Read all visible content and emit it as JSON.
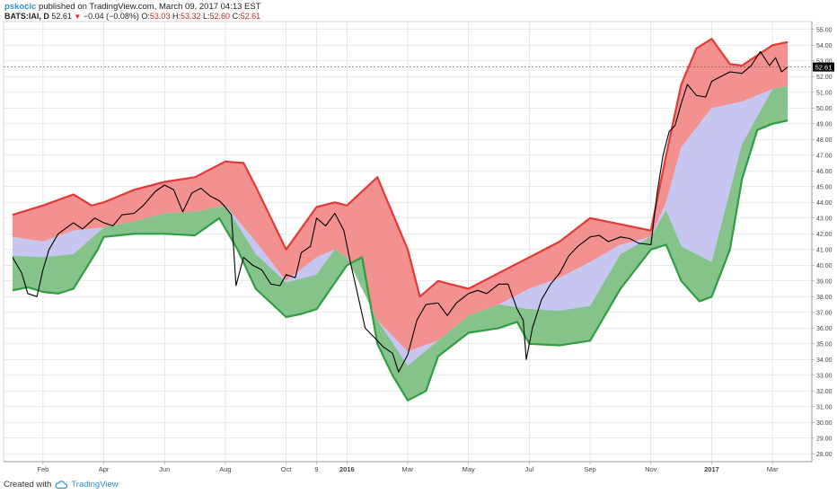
{
  "header": {
    "author": "pskocic",
    "published_text": "published on TradingView.com, March 09, 2017 04:13 EST",
    "symbol": "BATS:IAI, D",
    "last": "52.61",
    "change": "−0.04 (−0.08%)",
    "open_label": "O:",
    "open": "53.03",
    "high_label": "H:",
    "high": "53.32",
    "low_label": "L:",
    "low": "52.60",
    "close_label": "C:",
    "close": "52.61"
  },
  "footer": {
    "created_with": "Created with",
    "brand": "TradingView"
  },
  "colors": {
    "upper_band": "#e53935",
    "upper_fill": "#f28b8b",
    "middle_fill": "#c3c3f0",
    "lower_band": "#2e9e40",
    "lower_fill": "#7ec27e",
    "price_line": "#000000",
    "last_price_label_bg": "#000000"
  },
  "chart_data": {
    "type": "line",
    "title": "",
    "xlabel": "",
    "ylabel": "",
    "ylim": [
      27.5,
      55.5
    ],
    "grid": true,
    "y_ticks": [
      "28.00",
      "29.00",
      "30.00",
      "31.00",
      "32.00",
      "33.00",
      "34.00",
      "35.00",
      "36.00",
      "37.00",
      "38.00",
      "39.00",
      "40.00",
      "41.00",
      "42.00",
      "43.00",
      "44.00",
      "45.00",
      "46.00",
      "47.00",
      "48.00",
      "49.00",
      "50.00",
      "51.00",
      "52.00",
      "53.00",
      "54.00",
      "55.00"
    ],
    "x_ticks": [
      {
        "label": "Feb",
        "x": 1,
        "bold": false
      },
      {
        "label": "Apr",
        "x": 3,
        "bold": false
      },
      {
        "label": "Jun",
        "x": 5,
        "bold": false
      },
      {
        "label": "Aug",
        "x": 7,
        "bold": false
      },
      {
        "label": "Oct",
        "x": 9,
        "bold": false
      },
      {
        "label": "9",
        "x": 10,
        "bold": false
      },
      {
        "label": "2016",
        "x": 11,
        "bold": true
      },
      {
        "label": "Mar",
        "x": 13,
        "bold": false
      },
      {
        "label": "May",
        "x": 15,
        "bold": false
      },
      {
        "label": "Jul",
        "x": 17,
        "bold": false
      },
      {
        "label": "Sep",
        "x": 19,
        "bold": false
      },
      {
        "label": "Nov",
        "x": 21,
        "bold": false
      },
      {
        "label": "2017",
        "x": 23,
        "bold": true
      },
      {
        "label": "Mar",
        "x": 25,
        "bold": false
      }
    ],
    "xlim": [
      0,
      26
    ],
    "last_price_label": "52.61",
    "last_price_value": 52.61,
    "series": [
      {
        "role": "upper-band",
        "points": [
          [
            0,
            43.2
          ],
          [
            1,
            43.8
          ],
          [
            2,
            44.5
          ],
          [
            2.6,
            43.8
          ],
          [
            3,
            44.0
          ],
          [
            4,
            44.8
          ],
          [
            5,
            45.3
          ],
          [
            6,
            45.6
          ],
          [
            7,
            46.6
          ],
          [
            7.6,
            46.5
          ],
          [
            8,
            45.0
          ],
          [
            9,
            41.0
          ],
          [
            10,
            43.7
          ],
          [
            10.6,
            44.0
          ],
          [
            11,
            43.8
          ],
          [
            12,
            45.6
          ],
          [
            13,
            41.0
          ],
          [
            13.4,
            38.0
          ],
          [
            14,
            39.0
          ],
          [
            15,
            38.5
          ],
          [
            16,
            39.5
          ],
          [
            17,
            40.5
          ],
          [
            18,
            41.5
          ],
          [
            19,
            43.0
          ],
          [
            20,
            42.6
          ],
          [
            21,
            42.2
          ],
          [
            21.5,
            47.0
          ],
          [
            22,
            51.5
          ],
          [
            22.5,
            53.8
          ],
          [
            23,
            54.4
          ],
          [
            23.6,
            52.8
          ],
          [
            24,
            52.7
          ],
          [
            25,
            54.0
          ],
          [
            25.5,
            54.2
          ]
        ]
      },
      {
        "role": "middle-band",
        "points": [
          [
            0,
            41.8
          ],
          [
            1,
            41.5
          ],
          [
            2,
            42.2
          ],
          [
            3,
            42.4
          ],
          [
            4,
            42.8
          ],
          [
            5,
            43.3
          ],
          [
            6,
            43.4
          ],
          [
            7,
            43.8
          ],
          [
            8,
            41.5
          ],
          [
            9,
            39.0
          ],
          [
            10,
            40.5
          ],
          [
            10.6,
            41.0
          ],
          [
            11,
            40.5
          ],
          [
            12,
            36.5
          ],
          [
            13,
            34.5
          ],
          [
            14,
            35.2
          ],
          [
            15,
            36.8
          ],
          [
            16,
            37.5
          ],
          [
            17,
            38.5
          ],
          [
            18,
            39.2
          ],
          [
            19,
            40.2
          ],
          [
            20,
            41.3
          ],
          [
            21,
            41.8
          ],
          [
            21.5,
            44.0
          ],
          [
            22,
            47.5
          ],
          [
            23,
            50.0
          ],
          [
            24,
            50.4
          ],
          [
            25,
            51.2
          ],
          [
            25.5,
            51.4
          ]
        ]
      },
      {
        "role": "lower-band",
        "points": [
          [
            0,
            38.4
          ],
          [
            0.5,
            38.6
          ],
          [
            1,
            38.3
          ],
          [
            1.5,
            38.2
          ],
          [
            2,
            38.5
          ],
          [
            2.8,
            41.0
          ],
          [
            3,
            41.8
          ],
          [
            4,
            42.0
          ],
          [
            5,
            42.0
          ],
          [
            6,
            41.9
          ],
          [
            6.8,
            43.0
          ],
          [
            7.4,
            41.0
          ],
          [
            8,
            38.5
          ],
          [
            9,
            36.7
          ],
          [
            9.5,
            36.9
          ],
          [
            10,
            37.2
          ],
          [
            11,
            40.0
          ],
          [
            11.5,
            40.5
          ],
          [
            12,
            35.0
          ],
          [
            12.5,
            33.0
          ],
          [
            13,
            31.4
          ],
          [
            13.6,
            32.0
          ],
          [
            14,
            34.2
          ],
          [
            15,
            35.7
          ],
          [
            16,
            36.0
          ],
          [
            16.6,
            36.4
          ],
          [
            17,
            35.0
          ],
          [
            18,
            34.9
          ],
          [
            19,
            35.2
          ],
          [
            20,
            38.5
          ],
          [
            21,
            41.0
          ],
          [
            21.5,
            41.3
          ],
          [
            22,
            39.0
          ],
          [
            22.6,
            37.7
          ],
          [
            23,
            38.0
          ],
          [
            23.6,
            41.0
          ],
          [
            24,
            45.5
          ],
          [
            24.5,
            48.6
          ],
          [
            25,
            49.0
          ],
          [
            25.5,
            49.2
          ]
        ]
      },
      {
        "role": "price",
        "points": [
          [
            0,
            40.5
          ],
          [
            0.3,
            39.5
          ],
          [
            0.5,
            38.2
          ],
          [
            0.8,
            38.0
          ],
          [
            1,
            39.7
          ],
          [
            1.2,
            41.0
          ],
          [
            1.5,
            42.0
          ],
          [
            2,
            42.7
          ],
          [
            2.3,
            42.3
          ],
          [
            2.7,
            43.0
          ],
          [
            3,
            42.7
          ],
          [
            3.3,
            42.5
          ],
          [
            3.6,
            43.2
          ],
          [
            4,
            43.3
          ],
          [
            4.3,
            43.8
          ],
          [
            4.7,
            44.7
          ],
          [
            5,
            45.1
          ],
          [
            5.3,
            44.8
          ],
          [
            5.6,
            43.4
          ],
          [
            5.9,
            44.6
          ],
          [
            6.2,
            44.9
          ],
          [
            6.5,
            44.4
          ],
          [
            6.8,
            44.1
          ],
          [
            7,
            43.7
          ],
          [
            7.2,
            43.2
          ],
          [
            7.35,
            38.7
          ],
          [
            7.6,
            40.5
          ],
          [
            7.9,
            40.0
          ],
          [
            8.2,
            39.7
          ],
          [
            8.5,
            38.8
          ],
          [
            8.8,
            38.7
          ],
          [
            9,
            39.4
          ],
          [
            9.3,
            39.2
          ],
          [
            9.5,
            40.8
          ],
          [
            9.8,
            41.2
          ],
          [
            10,
            43.0
          ],
          [
            10.3,
            42.5
          ],
          [
            10.6,
            43.3
          ],
          [
            10.9,
            42.2
          ],
          [
            11.1,
            40.3
          ],
          [
            11.3,
            38.6
          ],
          [
            11.6,
            36.0
          ],
          [
            11.9,
            35.4
          ],
          [
            12.2,
            34.8
          ],
          [
            12.5,
            34.4
          ],
          [
            12.7,
            33.2
          ],
          [
            13,
            34.3
          ],
          [
            13.3,
            36.5
          ],
          [
            13.6,
            37.5
          ],
          [
            14,
            37.6
          ],
          [
            14.3,
            36.8
          ],
          [
            14.6,
            37.6
          ],
          [
            15,
            38.2
          ],
          [
            15.3,
            38.4
          ],
          [
            15.6,
            38.2
          ],
          [
            16,
            38.8
          ],
          [
            16.3,
            38.8
          ],
          [
            16.6,
            37.2
          ],
          [
            16.8,
            36.5
          ],
          [
            16.9,
            34.0
          ],
          [
            17.1,
            36.0
          ],
          [
            17.4,
            37.8
          ],
          [
            17.7,
            38.8
          ],
          [
            18,
            39.5
          ],
          [
            18.3,
            40.6
          ],
          [
            18.6,
            41.2
          ],
          [
            19,
            41.8
          ],
          [
            19.3,
            41.9
          ],
          [
            19.6,
            41.5
          ],
          [
            20,
            41.8
          ],
          [
            20.3,
            41.7
          ],
          [
            20.6,
            41.4
          ],
          [
            21,
            41.3
          ],
          [
            21.2,
            44.5
          ],
          [
            21.4,
            47.0
          ],
          [
            21.6,
            48.5
          ],
          [
            21.8,
            48.9
          ],
          [
            22,
            50.3
          ],
          [
            22.2,
            51.5
          ],
          [
            22.5,
            50.8
          ],
          [
            22.8,
            50.7
          ],
          [
            23,
            51.7
          ],
          [
            23.3,
            52.0
          ],
          [
            23.6,
            52.3
          ],
          [
            24,
            52.2
          ],
          [
            24.3,
            52.7
          ],
          [
            24.6,
            53.6
          ],
          [
            24.9,
            52.7
          ],
          [
            25.1,
            53.2
          ],
          [
            25.3,
            52.3
          ],
          [
            25.5,
            52.61
          ]
        ]
      }
    ]
  }
}
